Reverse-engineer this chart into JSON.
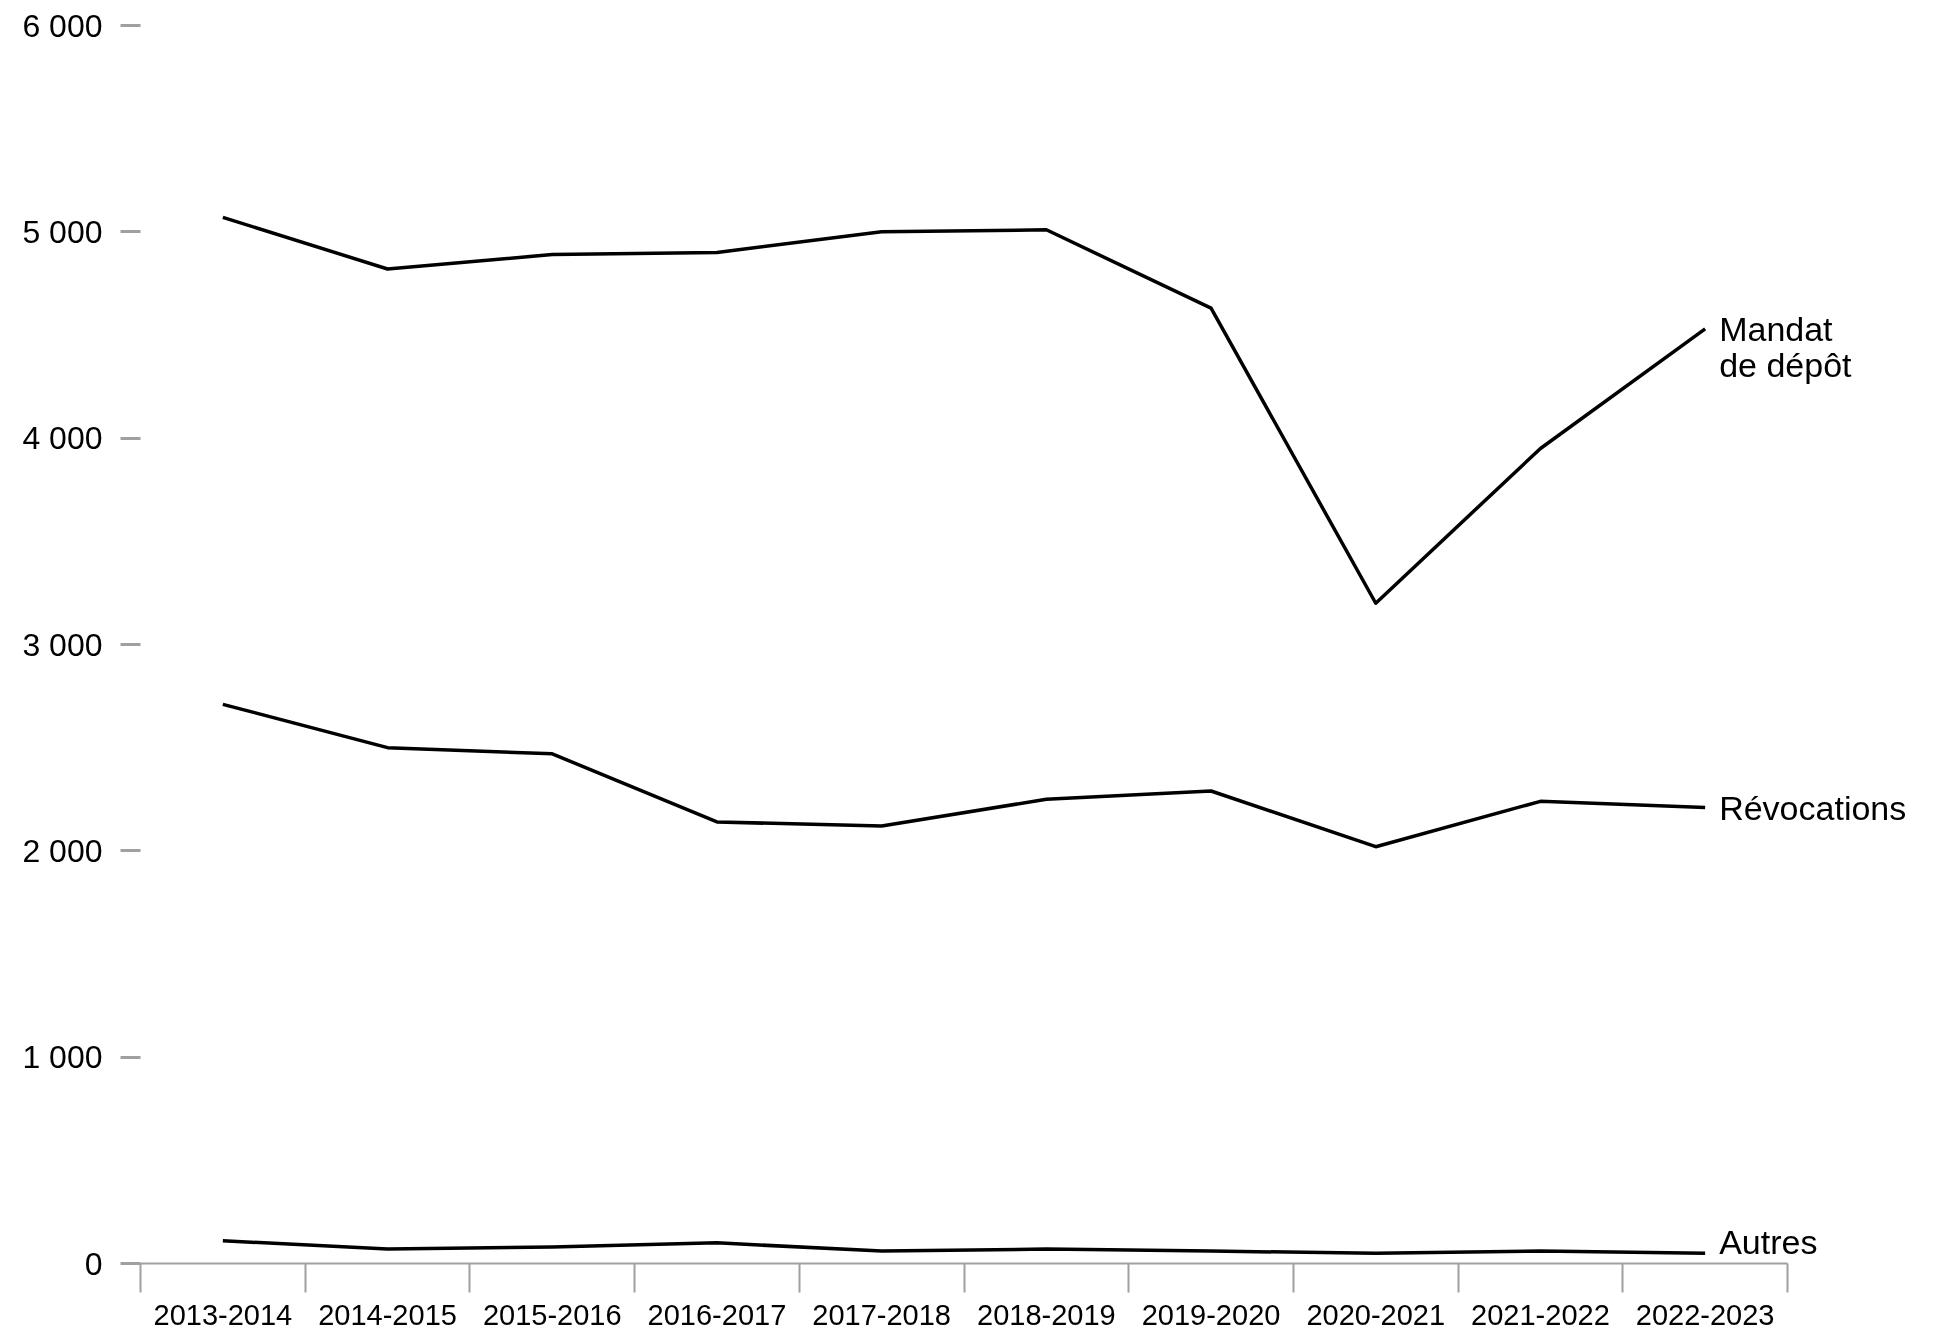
{
  "chart_data": {
    "type": "line",
    "categories": [
      "2013-2014",
      "2014-2015",
      "2015-2016",
      "2016-2017",
      "2017-2018",
      "2018-2019",
      "2019-2020",
      "2020-2021",
      "2021-2022",
      "2022-2023"
    ],
    "series": [
      {
        "name": "Mandat de dépôt",
        "color": "#000000",
        "values": [
          5070,
          4820,
          4890,
          4900,
          5000,
          5010,
          4630,
          3200,
          3950,
          4530
        ]
      },
      {
        "name": "Révocations",
        "color": "#000000",
        "values": [
          2710,
          2500,
          2470,
          2140,
          2120,
          2250,
          2290,
          2020,
          2240,
          2210
        ]
      },
      {
        "name": "Autres",
        "color": "#000000",
        "values": [
          110,
          70,
          80,
          100,
          60,
          70,
          60,
          50,
          60,
          50
        ]
      }
    ],
    "ylim": [
      0,
      6000
    ],
    "yticks": [
      0,
      {
        "value": 1000,
        "label": "1 000"
      },
      {
        "value": 2000,
        "label": "2 000"
      },
      {
        "value": 3000,
        "label": "3 000"
      },
      {
        "value": 4000,
        "label": "4 000"
      },
      {
        "value": 5000,
        "label": "5 000"
      },
      {
        "value": 6000,
        "label": "6 000"
      }
    ],
    "line_style": "solid"
  }
}
